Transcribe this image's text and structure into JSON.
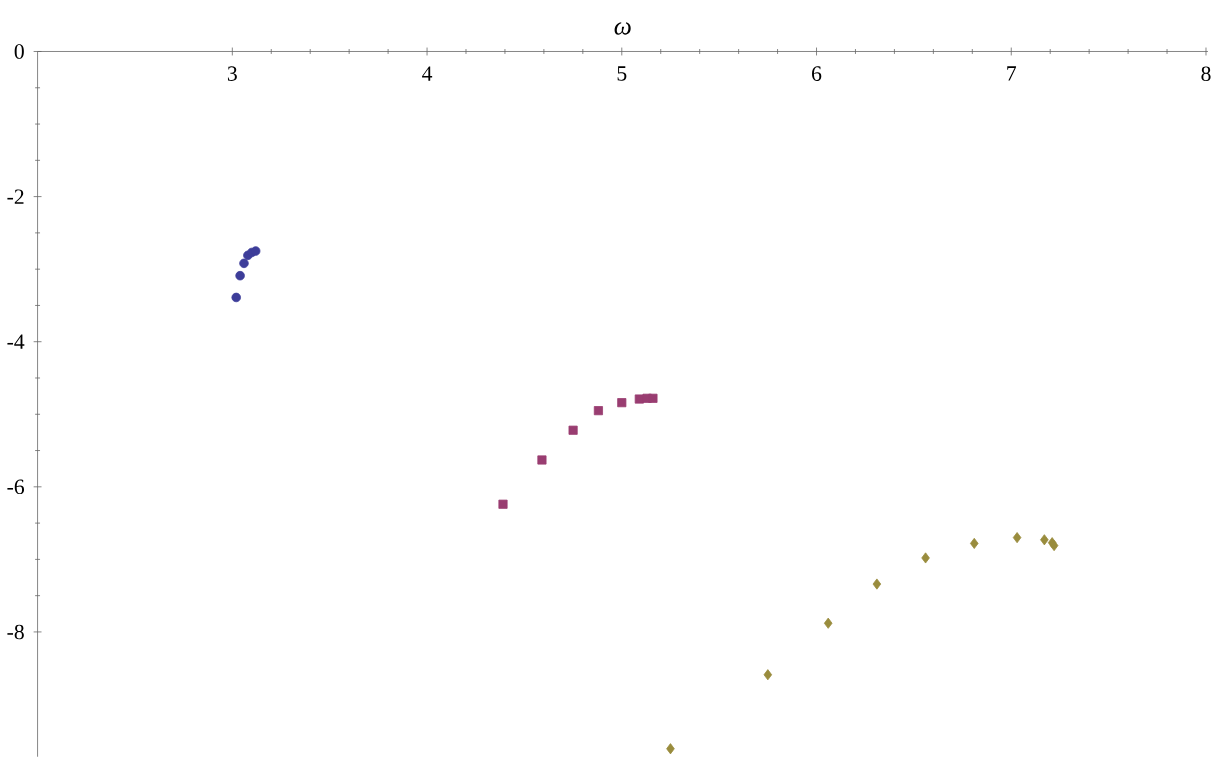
{
  "chart_data": {
    "type": "scatter",
    "xlabel": "ω",
    "xlim": [
      2,
      8.01
    ],
    "ylim": [
      -9.72,
      0
    ],
    "xticks": [
      3,
      4,
      5,
      6,
      7,
      8
    ],
    "yticks": [
      0,
      -2,
      -4,
      -6,
      -8
    ],
    "grid": false,
    "series": [
      {
        "color": "#3d3d99",
        "marker": "circle",
        "x": [
          3.02,
          3.04,
          3.06,
          3.08,
          3.1,
          3.12
        ],
        "values": [
          -3.39,
          -3.09,
          -2.92,
          -2.81,
          -2.77,
          -2.75
        ]
      },
      {
        "color": "#993d71",
        "marker": "square",
        "x": [
          4.39,
          4.59,
          4.75,
          4.88,
          5.0,
          5.09,
          5.13,
          5.16
        ],
        "values": [
          -6.24,
          -5.63,
          -5.22,
          -4.95,
          -4.84,
          -4.79,
          -4.78,
          -4.78
        ]
      },
      {
        "color": "#998c3d",
        "marker": "diamond",
        "x": [
          5.25,
          5.75,
          6.06,
          6.31,
          6.56,
          6.81,
          7.03,
          7.17,
          7.21,
          7.22
        ],
        "values": [
          -9.61,
          -8.59,
          -7.88,
          -7.34,
          -6.98,
          -6.78,
          -6.7,
          -6.73,
          -6.77,
          -6.81
        ]
      }
    ]
  }
}
